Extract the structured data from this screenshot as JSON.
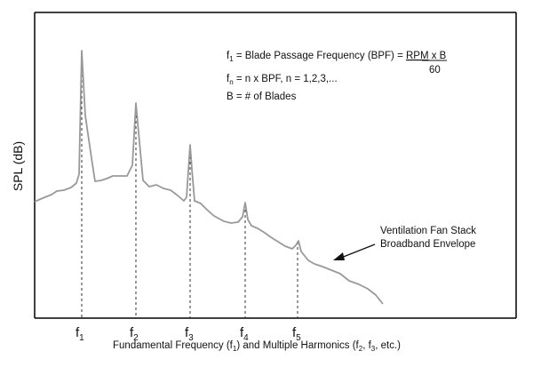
{
  "figure": {
    "y_axis_label": "SPL (dB)",
    "x_axis_label": {
      "prefix": "Fundamental Frequency (f",
      "sub1": "1",
      "middle": ") and Multiple Harmonics (f",
      "sub2": "2",
      "middle2": ", f",
      "sub3": "3",
      "suffix": ", etc.)"
    },
    "harmonic_ticks": [
      {
        "base": "f",
        "sub": "1"
      },
      {
        "base": "f",
        "sub": "2"
      },
      {
        "base": "f",
        "sub": "3"
      },
      {
        "base": "f",
        "sub": "4"
      },
      {
        "base": "f",
        "sub": "5"
      }
    ],
    "equations": {
      "line1": {
        "f": "f",
        "sub": "1",
        "text": " = Blade Passage Frequency (BPF) = ",
        "numerator": "RPM",
        "times": " x B",
        "denominator": "60"
      },
      "line2": {
        "f": "f",
        "sub": "n",
        "text": " = n x BPF, n = 1,2,3,..."
      },
      "line3": "B = # of Blades"
    },
    "annotation": {
      "line1": "Ventilation Fan Stack",
      "line2": "Broadband Envelope"
    },
    "colors": {
      "curve": "#999999",
      "axes": "#000000",
      "dashed": "#333333",
      "text": "#111111"
    }
  }
}
